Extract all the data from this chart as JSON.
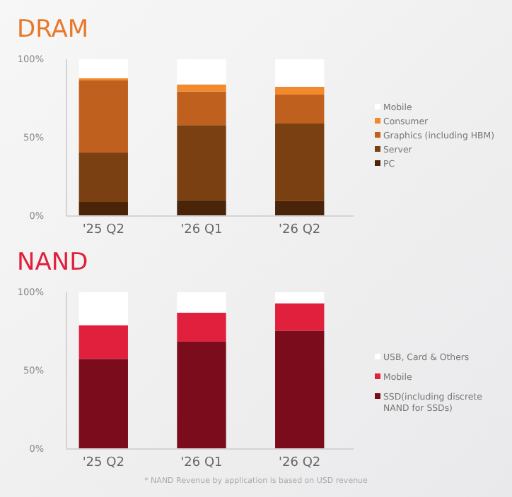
{
  "chart_data": [
    {
      "type": "bar",
      "title": "DRAM",
      "categories": [
        "'25 Q2",
        "'26 Q1",
        "'26 Q2"
      ],
      "stacked": true,
      "ylim": [
        0,
        100
      ],
      "yticks": [
        {
          "value": 0,
          "label": "0%"
        },
        {
          "value": 50,
          "label": "50%"
        },
        {
          "value": 100,
          "label": "100%"
        }
      ],
      "legend": "right",
      "series": [
        {
          "name": "PC",
          "color": "#4a2408",
          "values": [
            9,
            10,
            9.5
          ]
        },
        {
          "name": "Server",
          "color": "#7a4012",
          "values": [
            31.5,
            48,
            49.5
          ]
        },
        {
          "name": "Graphics (including HBM)",
          "color": "#bf601f",
          "values": [
            46,
            21.5,
            18.5
          ]
        },
        {
          "name": "Consumer",
          "color": "#f08a2c",
          "values": [
            1.5,
            4.5,
            5
          ]
        },
        {
          "name": "Mobile",
          "color": "#ffffff",
          "values": [
            12,
            16,
            17.5
          ]
        }
      ]
    },
    {
      "type": "bar",
      "title": "NAND",
      "categories": [
        "'25 Q2",
        "'26 Q1",
        "'26 Q2"
      ],
      "stacked": true,
      "ylim": [
        0,
        100
      ],
      "yticks": [
        {
          "value": 0,
          "label": "0%"
        },
        {
          "value": 50,
          "label": "50%"
        },
        {
          "value": 100,
          "label": "100%"
        }
      ],
      "legend": "right",
      "annotations": [
        "* NAND Revenue by application is based on USD revenue"
      ],
      "series": [
        {
          "name": "SSD(including discrete NAND for SSDs)",
          "color": "#7a0c1c",
          "values": [
            57.5,
            68.5,
            75.5
          ]
        },
        {
          "name": "Mobile",
          "color": "#e0203c",
          "values": [
            21.5,
            18.5,
            17.5
          ]
        },
        {
          "name": "USB, Card & Others",
          "color": "#ffffff",
          "values": [
            21,
            13,
            7
          ]
        }
      ]
    }
  ]
}
